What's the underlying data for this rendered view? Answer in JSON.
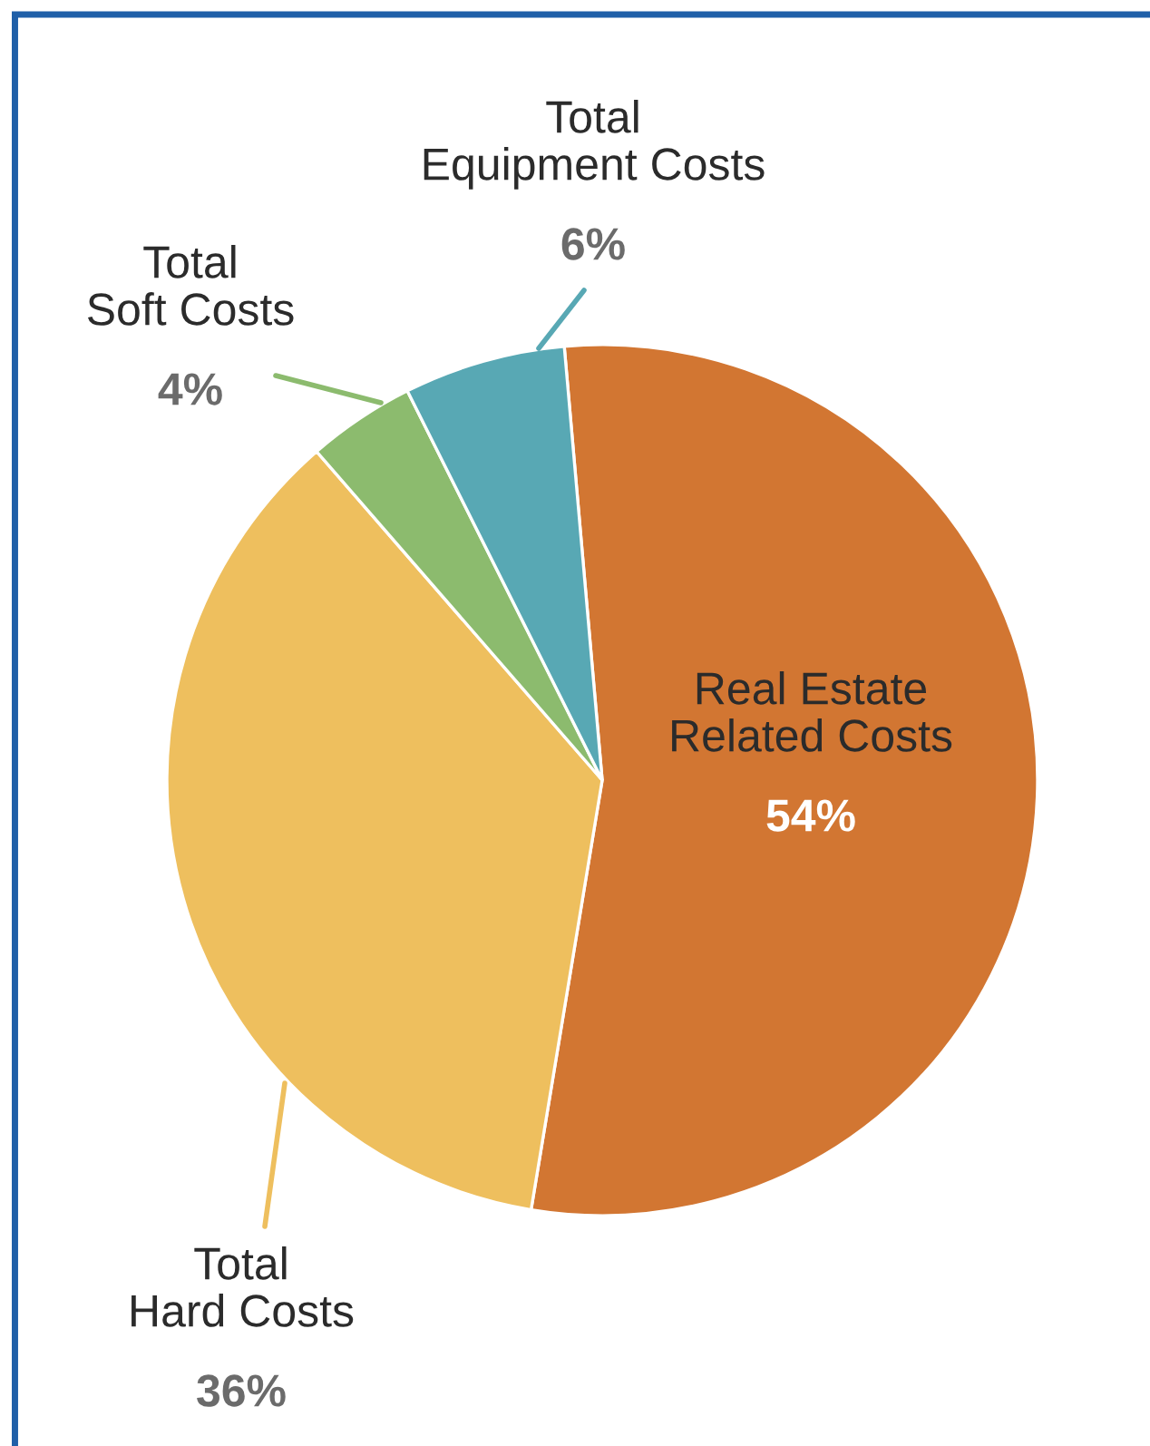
{
  "chart_data": {
    "type": "pie",
    "categories": [
      "Real Estate\nRelated Costs",
      "Total\nHard Costs",
      "Total\nSoft Costs",
      "Total\nEquipment Costs"
    ],
    "values": [
      54,
      36,
      4,
      6
    ],
    "colors": [
      "#d27632",
      "#eebf5e",
      "#8cbb6e",
      "#58a8b4"
    ],
    "value_labels": [
      "54%",
      "36%",
      "4%",
      "6%"
    ],
    "legend": false
  }
}
